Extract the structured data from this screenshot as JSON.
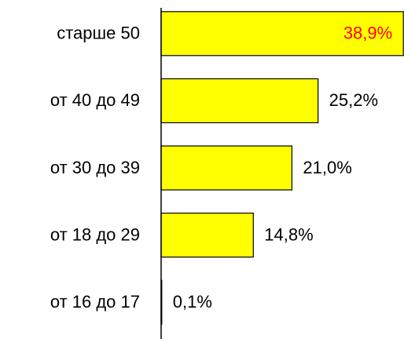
{
  "chart_data": {
    "type": "bar",
    "orientation": "horizontal",
    "categories": [
      "старше 50",
      "от 40 до 49",
      "от 30 до 39",
      "от 18 до 29",
      "от 16 до 17"
    ],
    "values": [
      38.9,
      25.2,
      21.0,
      14.8,
      0.1
    ],
    "value_labels": [
      "38,9%",
      "25,2%",
      "21,0%",
      "14,8%",
      "0,1%"
    ],
    "color": "#ffff00",
    "xlim": [
      0,
      39
    ]
  }
}
